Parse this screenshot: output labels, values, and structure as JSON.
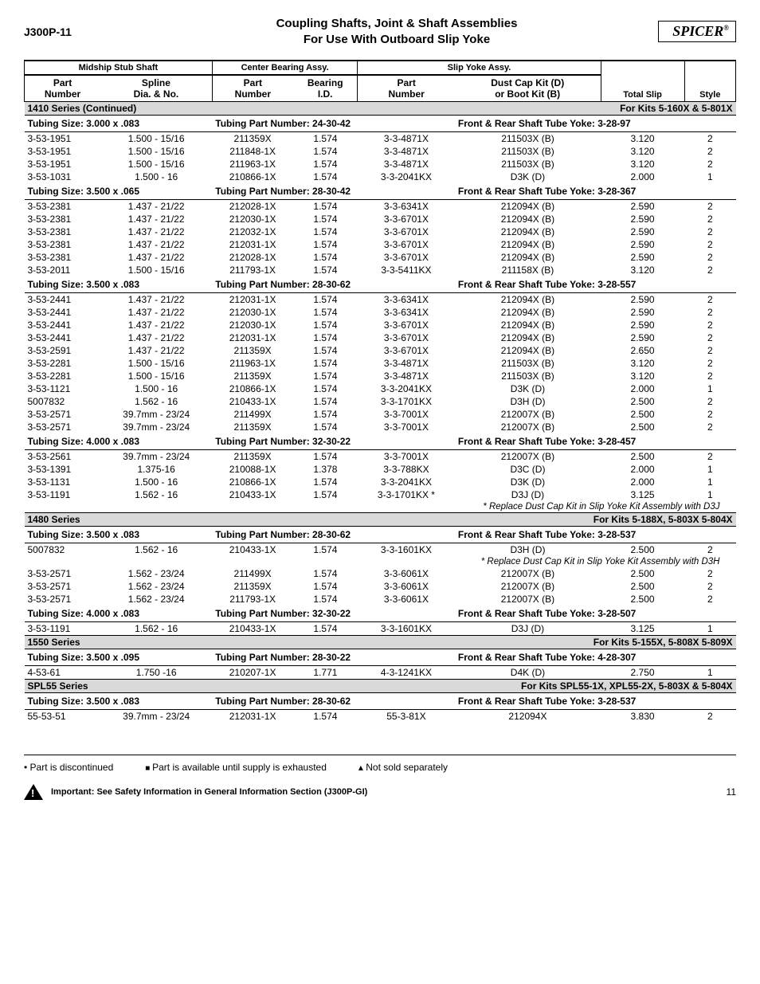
{
  "header": {
    "code": "J300P-11",
    "title_l1": "Coupling Shafts, Joint & Shaft Assemblies",
    "title_l2": "For Use With Outboard Slip Yoke",
    "logo": "SPICER"
  },
  "columns": {
    "group1": "Midship Stub Shaft",
    "group2": "Center Bearing Assy.",
    "group3": "Slip Yoke Assy.",
    "c1a": "Part",
    "c1b": "Number",
    "c2a": "Spline",
    "c2b": "Dia. & No.",
    "c3a": "Part",
    "c3b": "Number",
    "c4a": "Bearing",
    "c4b": "I.D.",
    "c5a": "Part",
    "c5b": "Number",
    "c6a": "Dust Cap Kit (D)",
    "c6b": "or Boot Kit (B)",
    "c7": "Total Slip",
    "c8": "Style"
  },
  "sections": [
    {
      "series_left": "1410 Series (Continued)",
      "series_right": "For Kits 5-160X & 5-801X",
      "blocks": [
        {
          "tubing": "Tubing Size: 3.000 x .083",
          "tpn": "Tubing Part Number: 24-30-42",
          "yoke": "Front & Rear Shaft Tube Yoke: 3-28-97",
          "rows": [
            [
              "3-53-1951",
              "1.500 - 15/16",
              "211359X",
              "1.574",
              "3-3-4871X",
              "211503X (B)",
              "3.120",
              "2"
            ],
            [
              "3-53-1951",
              "1.500 - 15/16",
              "211848-1X",
              "1.574",
              "3-3-4871X",
              "211503X (B)",
              "3.120",
              "2"
            ],
            [
              "3-53-1951",
              "1.500 - 15/16",
              "211963-1X",
              "1.574",
              "3-3-4871X",
              "211503X (B)",
              "3.120",
              "2"
            ],
            [
              "3-53-1031",
              "1.500 - 16",
              "210866-1X",
              "1.574",
              "3-3-2041KX",
              "D3K (D)",
              "2.000",
              "1"
            ]
          ]
        },
        {
          "tubing": "Tubing Size: 3.500 x .065",
          "tpn": "Tubing Part Number: 28-30-42",
          "yoke": "Front & Rear Shaft Tube Yoke: 3-28-367",
          "rows": [
            [
              "3-53-2381",
              "1.437 - 21/22",
              "212028-1X",
              "1.574",
              "3-3-6341X",
              "212094X (B)",
              "2.590",
              "2"
            ],
            [
              "3-53-2381",
              "1.437 - 21/22",
              "212030-1X",
              "1.574",
              "3-3-6701X",
              "212094X (B)",
              "2.590",
              "2"
            ],
            [
              "3-53-2381",
              "1.437 - 21/22",
              "212032-1X",
              "1.574",
              "3-3-6701X",
              "212094X (B)",
              "2.590",
              "2"
            ],
            [
              "3-53-2381",
              "1.437 - 21/22",
              "212031-1X",
              "1.574",
              "3-3-6701X",
              "212094X (B)",
              "2.590",
              "2"
            ],
            [
              "3-53-2381",
              "1.437 - 21/22",
              "212028-1X",
              "1.574",
              "3-3-6701X",
              "212094X (B)",
              "2.590",
              "2"
            ],
            [
              "3-53-2011",
              "1.500 - 15/16",
              "211793-1X",
              "1.574",
              "3-3-5411KX",
              "211158X (B)",
              "3.120",
              "2"
            ]
          ]
        },
        {
          "tubing": "Tubing Size: 3.500 x .083",
          "tpn": "Tubing Part Number: 28-30-62",
          "yoke": "Front & Rear Shaft Tube Yoke: 3-28-557",
          "rows": [
            [
              "3-53-2441",
              "1.437 - 21/22",
              "212031-1X",
              "1.574",
              "3-3-6341X",
              "212094X (B)",
              "2.590",
              "2"
            ],
            [
              "3-53-2441",
              "1.437 - 21/22",
              "212030-1X",
              "1.574",
              "3-3-6341X",
              "212094X (B)",
              "2.590",
              "2"
            ],
            [
              "3-53-2441",
              "1.437 - 21/22",
              "212030-1X",
              "1.574",
              "3-3-6701X",
              "212094X (B)",
              "2.590",
              "2"
            ],
            [
              "3-53-2441",
              "1.437 - 21/22",
              "212031-1X",
              "1.574",
              "3-3-6701X",
              "212094X (B)",
              "2.590",
              "2"
            ],
            [
              "3-53-2591",
              "1.437 - 21/22",
              "211359X",
              "1.574",
              "3-3-6701X",
              "212094X (B)",
              "2.650",
              "2"
            ],
            [
              "3-53-2281",
              "1.500 - 15/16",
              "211963-1X",
              "1.574",
              "3-3-4871X",
              "211503X (B)",
              "3.120",
              "2"
            ],
            [
              "3-53-2281",
              "1.500 - 15/16",
              "211359X",
              "1.574",
              "3-3-4871X",
              "211503X (B)",
              "3.120",
              "2"
            ],
            [
              "3-53-1121",
              "1.500 - 16",
              "210866-1X",
              "1.574",
              "3-3-2041KX",
              "D3K (D)",
              "2.000",
              "1"
            ],
            [
              "5007832",
              "1.562 - 16",
              "210433-1X",
              "1.574",
              "3-3-1701KX",
              "D3H (D)",
              "2.500",
              "2"
            ],
            [
              "3-53-2571",
              "39.7mm - 23/24",
              "211499X",
              "1.574",
              "3-3-7001X",
              "212007X (B)",
              "2.500",
              "2"
            ],
            [
              "3-53-2571",
              "39.7mm - 23/24",
              "211359X",
              "1.574",
              "3-3-7001X",
              "212007X (B)",
              "2.500",
              "2"
            ]
          ]
        },
        {
          "tubing": "Tubing Size: 4.000 x .083",
          "tpn": "Tubing Part Number: 32-30-22",
          "yoke": "Front & Rear Shaft Tube Yoke: 3-28-457",
          "rows": [
            [
              "3-53-2561",
              "39.7mm - 23/24",
              "211359X",
              "1.574",
              "3-3-7001X",
              "212007X (B)",
              "2.500",
              "2"
            ],
            [
              "3-53-1391",
              "1.375-16",
              "210088-1X",
              "1.378",
              "3-3-788KX",
              "D3C (D)",
              "2.000",
              "1"
            ],
            [
              "3-53-1131",
              "1.500 - 16",
              "210866-1X",
              "1.574",
              "3-3-2041KX",
              "D3K (D)",
              "2.000",
              "1"
            ],
            [
              "3-53-1191",
              "1.562 - 16",
              "210433-1X",
              "1.574",
              "3-3-1701KX *",
              "D3J (D)",
              "3.125",
              "1"
            ]
          ],
          "note": "* Replace Dust Cap Kit in Slip Yoke Kit Assembly with D3J"
        }
      ]
    },
    {
      "series_left": "1480 Series",
      "series_right": "For Kits 5-188X, 5-803X 5-804X",
      "blocks": [
        {
          "tubing": "Tubing Size: 3.500 x .083",
          "tpn": "Tubing Part Number: 28-30-62",
          "yoke": "Front & Rear Shaft Tube Yoke: 3-28-537",
          "rows": [
            [
              "5007832",
              "1.562 - 16",
              "210433-1X",
              "1.574",
              "3-3-1601KX",
              "D3H (D)",
              "2.500",
              "2"
            ]
          ],
          "note": "* Replace Dust Cap Kit in Slip Yoke Kit Assembly with D3H",
          "rows2": [
            [
              "3-53-2571",
              "1.562 - 23/24",
              "211499X",
              "1.574",
              "3-3-6061X",
              "212007X (B)",
              "2.500",
              "2"
            ],
            [
              "3-53-2571",
              "1.562 - 23/24",
              "211359X",
              "1.574",
              "3-3-6061X",
              "212007X (B)",
              "2.500",
              "2"
            ],
            [
              "3-53-2571",
              "1.562 - 23/24",
              "211793-1X",
              "1.574",
              "3-3-6061X",
              "212007X (B)",
              "2.500",
              "2"
            ]
          ]
        },
        {
          "tubing": "Tubing Size: 4.000 x .083",
          "tpn": "Tubing Part Number: 32-30-22",
          "yoke": "Front & Rear Shaft Tube Yoke: 3-28-507",
          "rows": [
            [
              "3-53-1191",
              "1.562 - 16",
              "210433-1X",
              "1.574",
              "3-3-1601KX",
              "D3J (D)",
              "3.125",
              "1"
            ]
          ]
        }
      ]
    },
    {
      "series_left": "1550 Series",
      "series_right": "For Kits 5-155X, 5-808X 5-809X",
      "blocks": [
        {
          "tubing": "Tubing Size: 3.500 x .095",
          "tpn": "Tubing Part Number: 28-30-22",
          "yoke": "Front & Rear Shaft Tube Yoke: 4-28-307",
          "rows": [
            [
              "4-53-61",
              "1.750 -16",
              "210207-1X",
              "1.771",
              "4-3-1241KX",
              "D4K (D)",
              "2.750",
              "1"
            ]
          ]
        }
      ]
    },
    {
      "series_left": "SPL55 Series",
      "series_right": "For  Kits SPL55-1X, XPL55-2X, 5-803X & 5-804X",
      "blocks": [
        {
          "tubing": "Tubing Size: 3.500 x .083",
          "tpn": "Tubing Part Number: 28-30-62",
          "yoke": "Front & Rear Shaft Tube Yoke: 3-28-537",
          "rows": [
            [
              "55-53-51",
              "39.7mm - 23/24",
              "212031-1X",
              "1.574",
              "55-3-81X",
              "212094X",
              "3.830",
              "2"
            ]
          ]
        }
      ]
    }
  ],
  "footer": {
    "legend1": "Part is discontinued",
    "legend2": "Part is available until supply is exhausted",
    "legend3": "Not sold separately",
    "important": "Important:  See Safety Information in General Information Section (J300P-GI)",
    "page": "11"
  }
}
